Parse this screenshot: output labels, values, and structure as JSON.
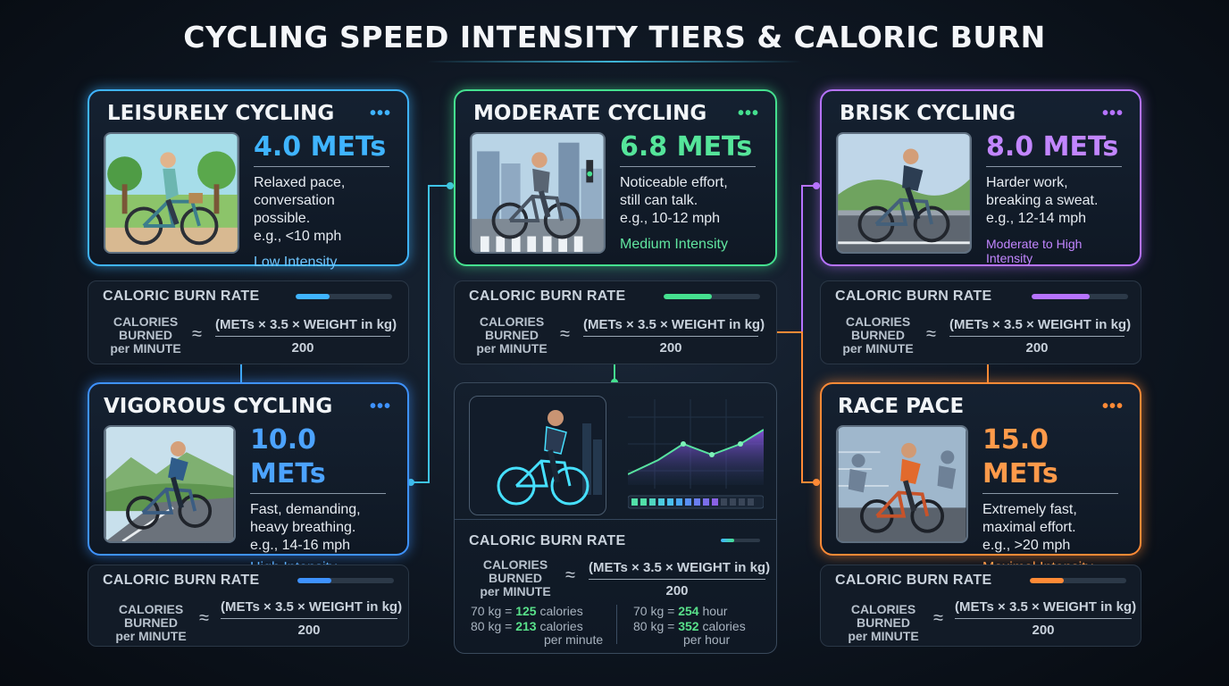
{
  "title": "CYCLING SPEED INTENSITY TIERS & CALORIC BURN",
  "colors": {
    "leisurely": "#3fb4ff",
    "moderate": "#45e08f",
    "brisk": "#b673ff",
    "vigorous": "#3e92ff",
    "race": "#ff8a36"
  },
  "tiers": {
    "leisurely": {
      "name": "LEISURELY CYCLING",
      "dots": "•••",
      "mets": "4.0 METs",
      "desc1": "Relaxed pace,",
      "desc2": "conversation possible.",
      "speed": "e.g., <10 mph",
      "intensity": "Low Intensity",
      "icon": "leisure-rider-image"
    },
    "moderate": {
      "name": "MODERATE CYCLING",
      "dots": "•••",
      "mets": "6.8 METs",
      "desc1": "Noticeable effort,",
      "desc2": "still can talk.",
      "speed": "e.g., 10-12 mph",
      "intensity": "Medium Intensity",
      "icon": "city-rider-image"
    },
    "brisk": {
      "name": "BRISK CYCLING",
      "dots": "•••",
      "mets": "8.0 METs",
      "desc1": "Harder work,",
      "desc2": "breaking a sweat.",
      "speed": "e.g., 12-14 mph",
      "intensity": "Moderate to High Intensity",
      "icon": "road-rider-image"
    },
    "vigorous": {
      "name": "VIGOROUS CYCLING",
      "dots": "•••",
      "mets": "10.0 METs",
      "desc1": "Fast, demanding,",
      "desc2": "heavy breathing.",
      "speed": "e.g., 14-16 mph",
      "intensity": "High Intensity",
      "icon": "mountain-road-rider-image"
    },
    "race": {
      "name": "RACE PACE",
      "dots": "•••",
      "mets": "15.0 METs",
      "desc1": "Extremely fast,",
      "desc2": "maximal effort.",
      "speed": "e.g., >20 mph",
      "intensity": "Maximal Intensity",
      "icon": "peloton-rider-image"
    }
  },
  "calc": {
    "title": "CALORIC BURN RATE",
    "label1": "CALORIES",
    "label2": "BURNED",
    "label3": "per MINUTE",
    "approx": "≈",
    "numerator": "(METs × 3.5 × WEIGHT in kg)",
    "denominator": "200"
  },
  "bar_levels": {
    "leisurely": 0.35,
    "moderate": 0.5,
    "brisk": 0.6,
    "vigorous": 0.35,
    "race": 0.35,
    "center": 0.35
  },
  "examples": {
    "row1_left_prefix": "70 kg = ",
    "row1_left_value": "125",
    "row1_left_unit": " calories",
    "row2_left_prefix": "80 kg = ",
    "row2_left_value": "213",
    "row2_left_unit": " calories",
    "row2_left_unit2": "per minute",
    "row1_right_prefix": "70 kg = ",
    "row1_right_value": "254",
    "row1_right_unit": " hour",
    "row2_right_prefix": "80 kg = ",
    "row2_right_value": "352",
    "row2_right_unit": " calories",
    "row2_right_unit2": "per hour"
  }
}
